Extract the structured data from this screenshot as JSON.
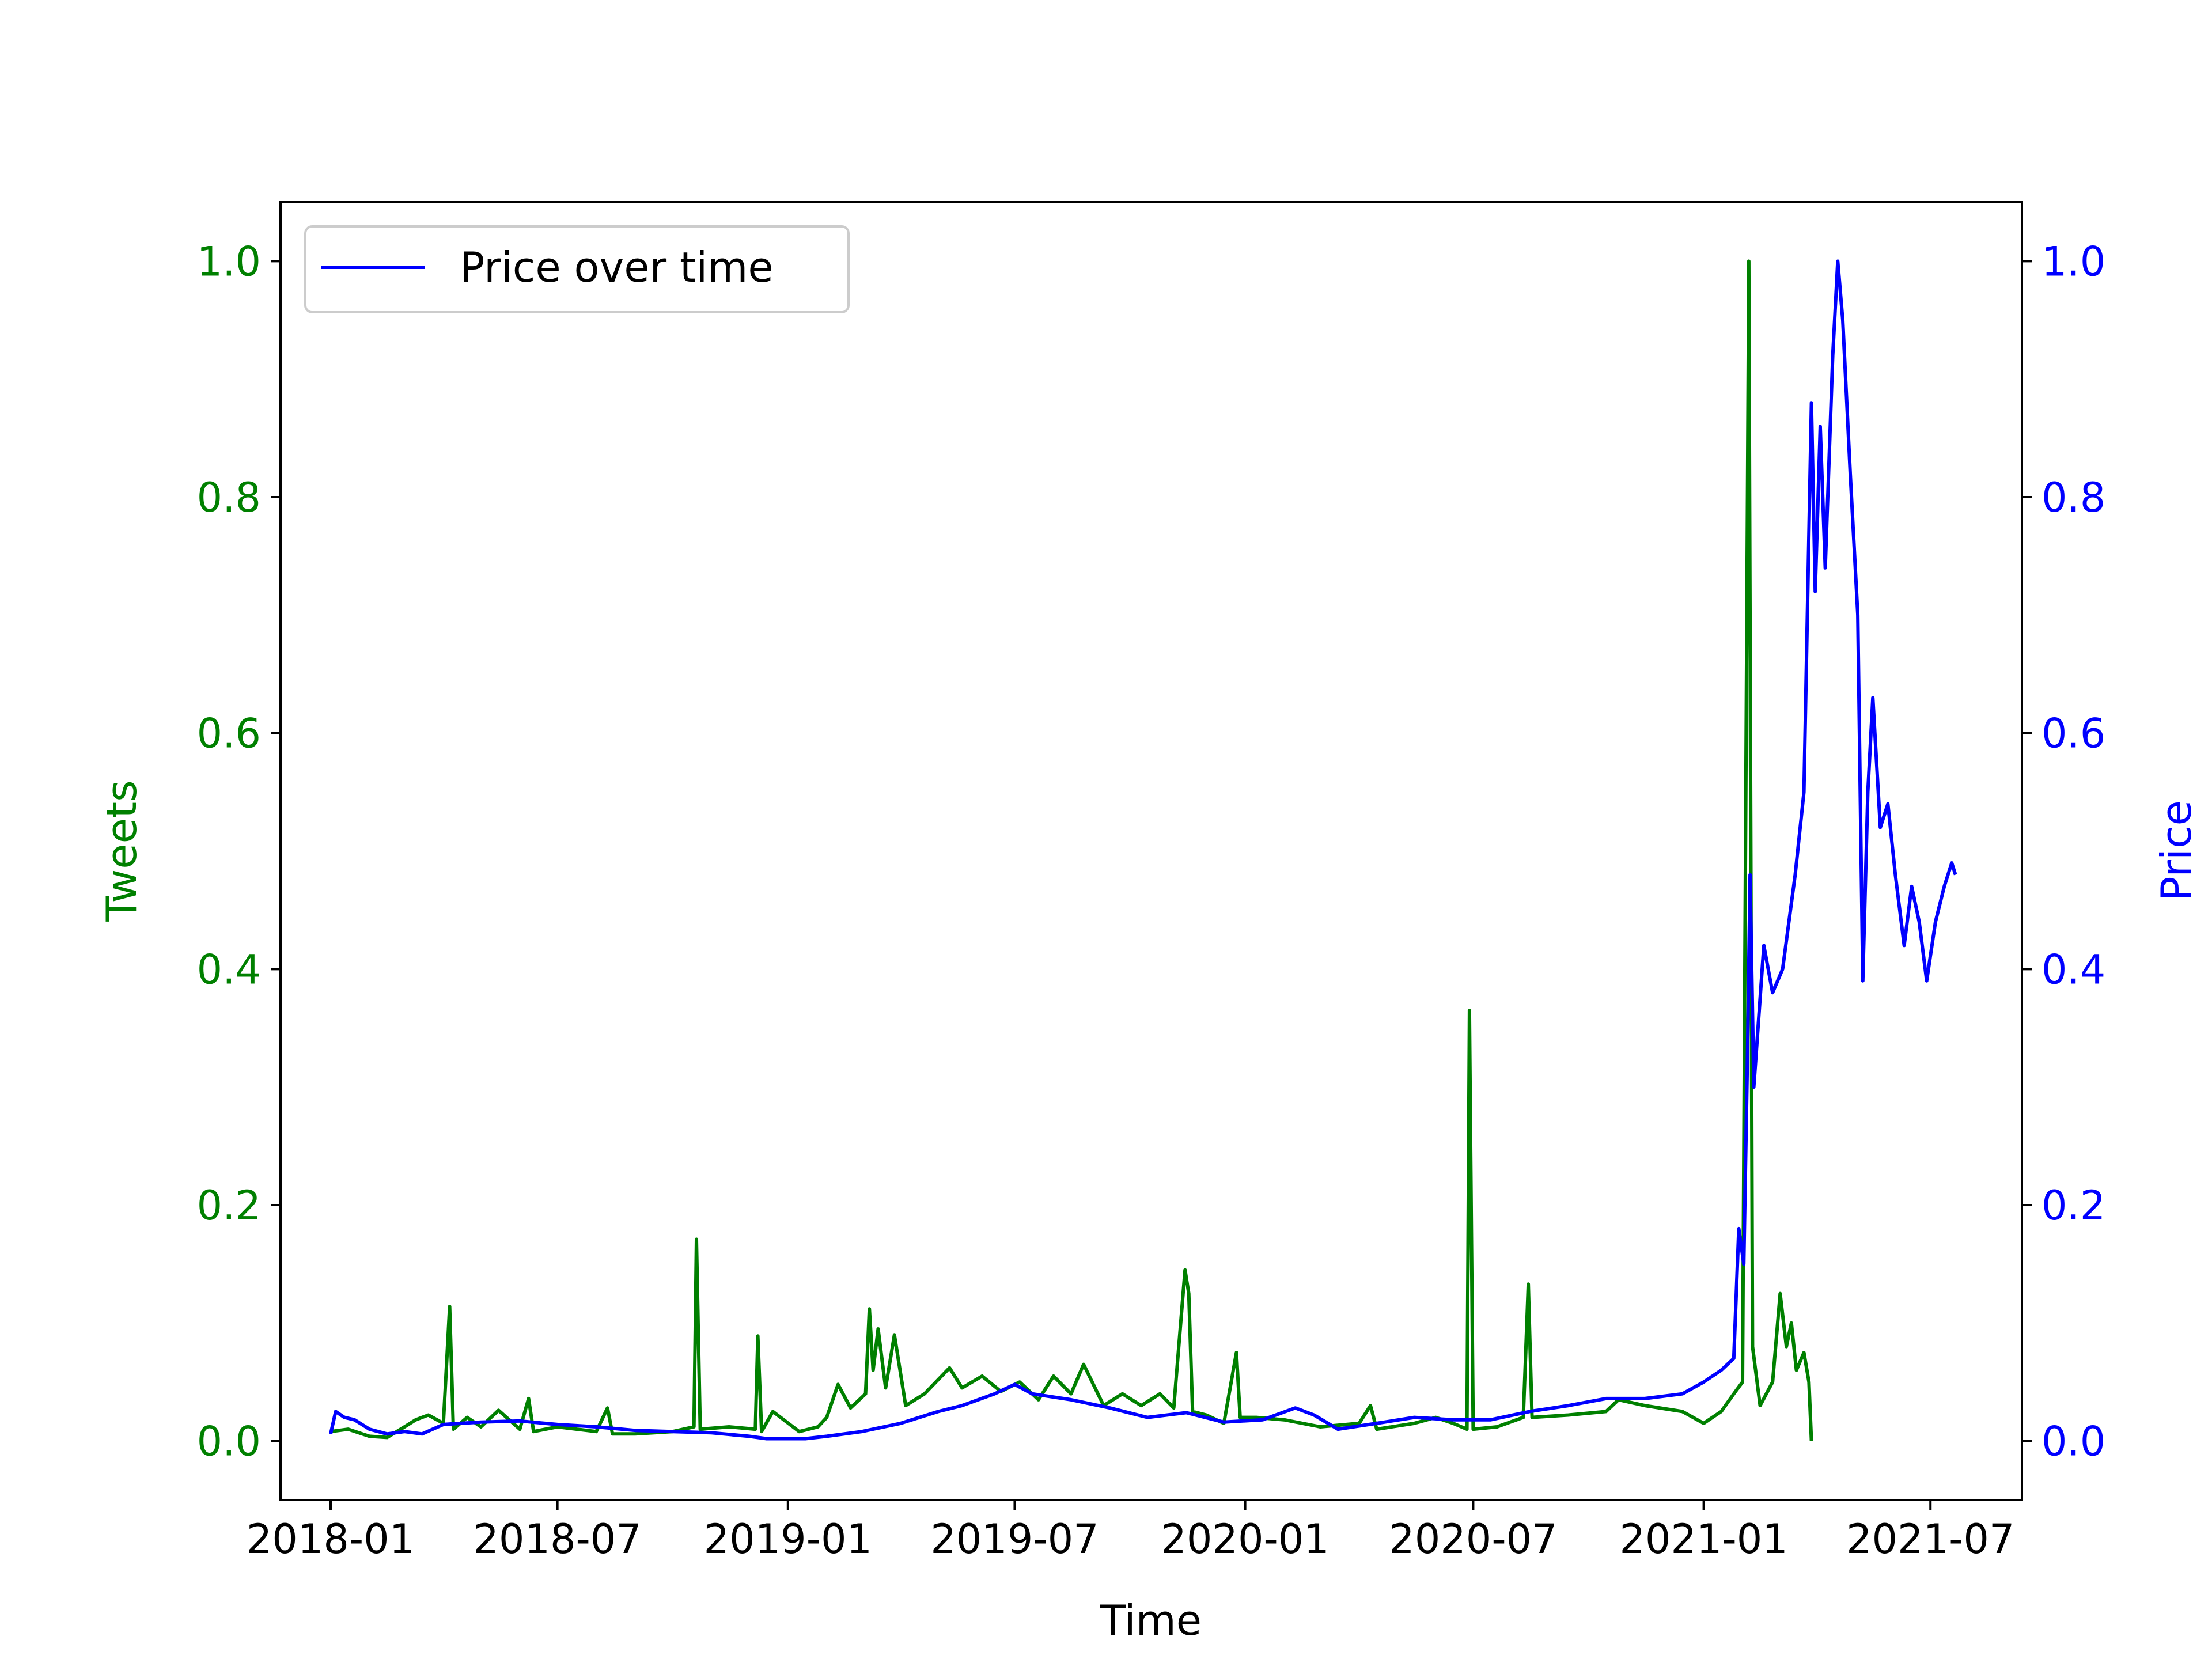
{
  "chart_data": {
    "type": "line",
    "xlabel": "Time",
    "ylabel_left": "Tweets",
    "ylabel_right": "Price",
    "x_ticks": [
      "2018-01",
      "2018-07",
      "2019-01",
      "2019-07",
      "2020-01",
      "2020-07",
      "2021-01",
      "2021-07"
    ],
    "y_ticks_left": [
      "0.0",
      "0.2",
      "0.4",
      "0.6",
      "0.8",
      "1.0"
    ],
    "y_ticks_right": [
      "0.0",
      "0.2",
      "0.4",
      "0.6",
      "0.8",
      "1.0"
    ],
    "ylim": [
      -0.05,
      1.05
    ],
    "xlim": [
      "2017-11-22",
      "2021-09-12"
    ],
    "legend": {
      "label": "Price over time",
      "placement": "upper-left"
    },
    "colors": {
      "tweets": "#008000",
      "price": "#0000ff",
      "axis": "#000000"
    },
    "series": [
      {
        "axis": "left",
        "color": "#008000",
        "points": [
          [
            "2018-01-01",
            0.008
          ],
          [
            "2018-01-15",
            0.01
          ],
          [
            "2018-02-01",
            0.004
          ],
          [
            "2018-02-15",
            0.003
          ],
          [
            "2018-03-01",
            0.012
          ],
          [
            "2018-03-10",
            0.018
          ],
          [
            "2018-03-20",
            0.022
          ],
          [
            "2018-04-01",
            0.015
          ],
          [
            "2018-04-06",
            0.114
          ],
          [
            "2018-04-09",
            0.01
          ],
          [
            "2018-04-20",
            0.02
          ],
          [
            "2018-05-01",
            0.012
          ],
          [
            "2018-05-15",
            0.026
          ],
          [
            "2018-06-01",
            0.01
          ],
          [
            "2018-06-08",
            0.036
          ],
          [
            "2018-06-12",
            0.008
          ],
          [
            "2018-07-01",
            0.012
          ],
          [
            "2018-08-01",
            0.008
          ],
          [
            "2018-08-10",
            0.028
          ],
          [
            "2018-08-14",
            0.006
          ],
          [
            "2018-09-01",
            0.006
          ],
          [
            "2018-10-01",
            0.008
          ],
          [
            "2018-10-18",
            0.012
          ],
          [
            "2018-10-20",
            0.171
          ],
          [
            "2018-10-23",
            0.01
          ],
          [
            "2018-11-15",
            0.012
          ],
          [
            "2018-12-06",
            0.01
          ],
          [
            "2018-12-08",
            0.089
          ],
          [
            "2018-12-11",
            0.008
          ],
          [
            "2018-12-20",
            0.025
          ],
          [
            "2019-01-10",
            0.008
          ],
          [
            "2019-01-25",
            0.012
          ],
          [
            "2019-02-01",
            0.02
          ],
          [
            "2019-02-10",
            0.048
          ],
          [
            "2019-02-20",
            0.028
          ],
          [
            "2019-03-04",
            0.04
          ],
          [
            "2019-03-07",
            0.112
          ],
          [
            "2019-03-10",
            0.06
          ],
          [
            "2019-03-14",
            0.095
          ],
          [
            "2019-03-20",
            0.045
          ],
          [
            "2019-03-27",
            0.09
          ],
          [
            "2019-04-05",
            0.03
          ],
          [
            "2019-04-20",
            0.04
          ],
          [
            "2019-05-10",
            0.062
          ],
          [
            "2019-05-20",
            0.045
          ],
          [
            "2019-06-05",
            0.055
          ],
          [
            "2019-06-20",
            0.042
          ],
          [
            "2019-07-05",
            0.05
          ],
          [
            "2019-07-20",
            0.035
          ],
          [
            "2019-08-01",
            0.055
          ],
          [
            "2019-08-15",
            0.04
          ],
          [
            "2019-08-25",
            0.065
          ],
          [
            "2019-09-10",
            0.03
          ],
          [
            "2019-09-25",
            0.04
          ],
          [
            "2019-10-10",
            0.03
          ],
          [
            "2019-10-25",
            0.04
          ],
          [
            "2019-11-05",
            0.028
          ],
          [
            "2019-11-14",
            0.145
          ],
          [
            "2019-11-17",
            0.125
          ],
          [
            "2019-11-20",
            0.025
          ],
          [
            "2019-12-01",
            0.022
          ],
          [
            "2019-12-15",
            0.015
          ],
          [
            "2019-12-25",
            0.075
          ],
          [
            "2019-12-28",
            0.02
          ],
          [
            "2020-01-10",
            0.02
          ],
          [
            "2020-02-01",
            0.018
          ],
          [
            "2020-03-01",
            0.012
          ],
          [
            "2020-04-01",
            0.015
          ],
          [
            "2020-04-10",
            0.03
          ],
          [
            "2020-04-15",
            0.01
          ],
          [
            "2020-05-15",
            0.015
          ],
          [
            "2020-06-01",
            0.02
          ],
          [
            "2020-06-15",
            0.015
          ],
          [
            "2020-06-26",
            0.01
          ],
          [
            "2020-06-28",
            0.365
          ],
          [
            "2020-07-01",
            0.01
          ],
          [
            "2020-07-20",
            0.012
          ],
          [
            "2020-08-10",
            0.02
          ],
          [
            "2020-08-14",
            0.133
          ],
          [
            "2020-08-17",
            0.02
          ],
          [
            "2020-09-15",
            0.022
          ],
          [
            "2020-10-15",
            0.025
          ],
          [
            "2020-10-25",
            0.035
          ],
          [
            "2020-11-15",
            0.03
          ],
          [
            "2020-12-15",
            0.025
          ],
          [
            "2021-01-01",
            0.015
          ],
          [
            "2021-01-15",
            0.025
          ],
          [
            "2021-01-25",
            0.04
          ],
          [
            "2021-02-01",
            0.05
          ],
          [
            "2021-02-06",
            1.0
          ],
          [
            "2021-02-09",
            0.08
          ],
          [
            "2021-02-15",
            0.03
          ],
          [
            "2021-02-25",
            0.05
          ],
          [
            "2021-03-03",
            0.125
          ],
          [
            "2021-03-08",
            0.08
          ],
          [
            "2021-03-12",
            0.1
          ],
          [
            "2021-03-16",
            0.06
          ],
          [
            "2021-03-22",
            0.075
          ],
          [
            "2021-03-26",
            0.05
          ],
          [
            "2021-03-28",
            0.0
          ]
        ]
      },
      {
        "axis": "right",
        "color": "#0000ff",
        "name": "Price over time",
        "points": [
          [
            "2018-01-01",
            0.006
          ],
          [
            "2018-01-05",
            0.025
          ],
          [
            "2018-01-12",
            0.02
          ],
          [
            "2018-01-20",
            0.018
          ],
          [
            "2018-02-01",
            0.01
          ],
          [
            "2018-02-15",
            0.006
          ],
          [
            "2018-03-01",
            0.008
          ],
          [
            "2018-03-15",
            0.006
          ],
          [
            "2018-04-01",
            0.014
          ],
          [
            "2018-04-15",
            0.015
          ],
          [
            "2018-05-01",
            0.016
          ],
          [
            "2018-06-01",
            0.017
          ],
          [
            "2018-07-01",
            0.014
          ],
          [
            "2018-08-01",
            0.012
          ],
          [
            "2018-09-01",
            0.009
          ],
          [
            "2018-10-01",
            0.008
          ],
          [
            "2018-11-01",
            0.007
          ],
          [
            "2018-12-01",
            0.004
          ],
          [
            "2018-12-15",
            0.002
          ],
          [
            "2019-01-15",
            0.002
          ],
          [
            "2019-02-01",
            0.004
          ],
          [
            "2019-03-01",
            0.008
          ],
          [
            "2019-04-01",
            0.015
          ],
          [
            "2019-05-01",
            0.025
          ],
          [
            "2019-05-20",
            0.03
          ],
          [
            "2019-06-15",
            0.04
          ],
          [
            "2019-07-01",
            0.048
          ],
          [
            "2019-07-15",
            0.04
          ],
          [
            "2019-08-15",
            0.035
          ],
          [
            "2019-09-15",
            0.028
          ],
          [
            "2019-10-15",
            0.02
          ],
          [
            "2019-11-15",
            0.024
          ],
          [
            "2019-12-15",
            0.016
          ],
          [
            "2020-01-15",
            0.018
          ],
          [
            "2020-02-10",
            0.028
          ],
          [
            "2020-02-25",
            0.022
          ],
          [
            "2020-03-15",
            0.01
          ],
          [
            "2020-04-15",
            0.015
          ],
          [
            "2020-05-15",
            0.02
          ],
          [
            "2020-06-15",
            0.018
          ],
          [
            "2020-07-15",
            0.018
          ],
          [
            "2020-08-15",
            0.025
          ],
          [
            "2020-09-15",
            0.03
          ],
          [
            "2020-10-15",
            0.036
          ],
          [
            "2020-11-15",
            0.036
          ],
          [
            "2020-12-15",
            0.04
          ],
          [
            "2021-01-01",
            0.05
          ],
          [
            "2021-01-15",
            0.06
          ],
          [
            "2021-01-25",
            0.07
          ],
          [
            "2021-01-29",
            0.18
          ],
          [
            "2021-02-02",
            0.15
          ],
          [
            "2021-02-05",
            0.33
          ],
          [
            "2021-02-07",
            0.48
          ],
          [
            "2021-02-10",
            0.3
          ],
          [
            "2021-02-14",
            0.36
          ],
          [
            "2021-02-18",
            0.42
          ],
          [
            "2021-02-25",
            0.38
          ],
          [
            "2021-03-05",
            0.4
          ],
          [
            "2021-03-15",
            0.48
          ],
          [
            "2021-03-22",
            0.55
          ],
          [
            "2021-03-28",
            0.88
          ],
          [
            "2021-03-31",
            0.72
          ],
          [
            "2021-04-04",
            0.86
          ],
          [
            "2021-04-08",
            0.74
          ],
          [
            "2021-04-14",
            0.92
          ],
          [
            "2021-04-18",
            1.0
          ],
          [
            "2021-04-22",
            0.95
          ],
          [
            "2021-04-28",
            0.82
          ],
          [
            "2021-05-04",
            0.7
          ],
          [
            "2021-05-08",
            0.39
          ],
          [
            "2021-05-12",
            0.55
          ],
          [
            "2021-05-16",
            0.63
          ],
          [
            "2021-05-22",
            0.52
          ],
          [
            "2021-05-28",
            0.54
          ],
          [
            "2021-06-03",
            0.48
          ],
          [
            "2021-06-10",
            0.42
          ],
          [
            "2021-06-16",
            0.47
          ],
          [
            "2021-06-22",
            0.44
          ],
          [
            "2021-06-28",
            0.39
          ],
          [
            "2021-07-05",
            0.44
          ],
          [
            "2021-07-12",
            0.47
          ],
          [
            "2021-07-18",
            0.49
          ],
          [
            "2021-07-21",
            0.48
          ]
        ]
      }
    ]
  }
}
